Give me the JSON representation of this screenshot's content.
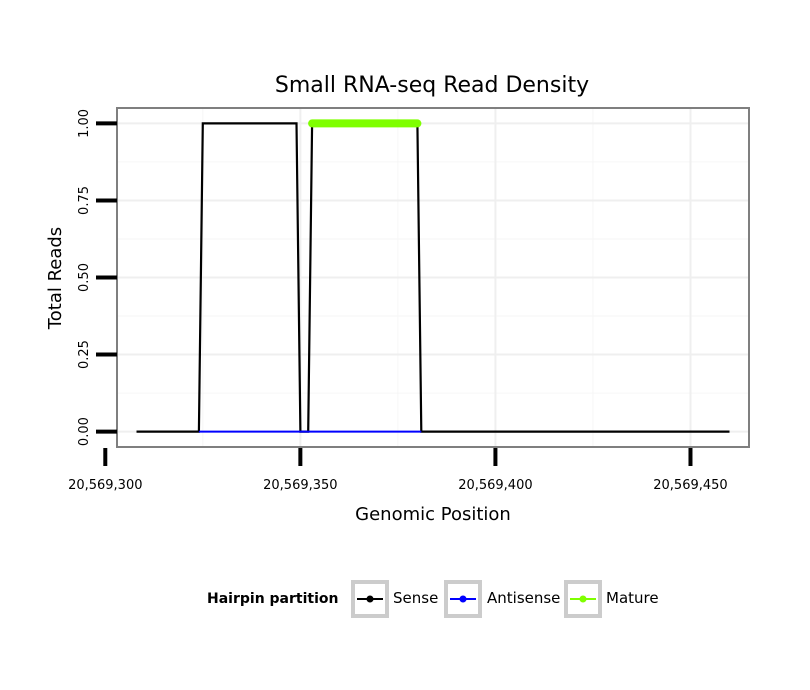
{
  "chart_data": {
    "type": "line",
    "title": "Small RNA-seq Read Density",
    "xlabel": "Genomic Position",
    "ylabel": "Total Reads",
    "xlim": [
      20569303,
      20569465
    ],
    "ylim": [
      -0.05,
      1.05
    ],
    "x_ticks": [
      20569300,
      20569350,
      20569400,
      20569450
    ],
    "x_tick_labels": [
      "20,569,300",
      "20,569,350",
      "20,569,400",
      "20,569,450"
    ],
    "y_ticks": [
      0,
      0.25,
      0.5,
      0.75,
      1.0
    ],
    "y_tick_labels": [
      "0.00",
      "0.25",
      "0.50",
      "0.75",
      "1.00"
    ],
    "grid": true,
    "legend": {
      "title": "Hairpin partition",
      "position": "bottom"
    },
    "series": [
      {
        "name": "Sense",
        "color": "#000000",
        "points": [
          [
            20569308,
            0
          ],
          [
            20569324,
            0
          ],
          [
            20569325,
            1
          ],
          [
            20569349,
            1
          ],
          [
            20569350,
            0
          ],
          [
            20569352,
            0
          ],
          [
            20569353,
            1
          ],
          [
            20569380,
            1
          ],
          [
            20569381,
            0
          ],
          [
            20569460,
            0
          ]
        ]
      },
      {
        "name": "Antisense",
        "color": "#0000ff",
        "points": [
          [
            20569324,
            0
          ],
          [
            20569381,
            0
          ]
        ]
      },
      {
        "name": "Mature",
        "color": "#7fff00",
        "points": [
          [
            20569353,
            1
          ],
          [
            20569380,
            1
          ]
        ]
      }
    ]
  }
}
